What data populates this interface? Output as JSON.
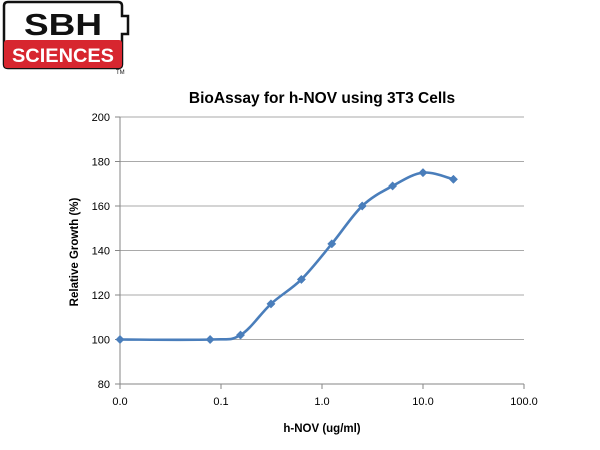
{
  "logo": {
    "line1": "SBH",
    "line2": "SCIENCES",
    "tm": "TM",
    "colors": {
      "red": "#d7262f",
      "black": "#111111",
      "white": "#ffffff"
    }
  },
  "chart_data": {
    "type": "line",
    "title": "BioAssay for h-NOV using 3T3 Cells",
    "xlabel": "h-NOV (ug/ml)",
    "ylabel": "Relative Growth (%)",
    "x_scale": "log",
    "xlim": [
      0.01,
      100
    ],
    "x_ticks": [
      0.01,
      0.1,
      1,
      10,
      100
    ],
    "x_tick_labels": [
      "0.0",
      "0.1",
      "1.0",
      "10.0",
      "100.0"
    ],
    "ylim": [
      80,
      200
    ],
    "y_ticks": [
      80,
      100,
      120,
      140,
      160,
      180,
      200
    ],
    "y_tick_labels": [
      "80",
      "100",
      "120",
      "140",
      "160",
      "180",
      "200"
    ],
    "grid": "horizontal",
    "legend": "none",
    "series": [
      {
        "color": "#4a7ebb",
        "marker": "diamond",
        "smooth": true,
        "x": [
          0.01,
          0.078,
          0.156,
          0.3125,
          0.625,
          1.25,
          2.5,
          5,
          10,
          20
        ],
        "y": [
          100,
          100,
          102,
          116,
          127,
          143,
          160,
          169,
          175,
          172
        ]
      }
    ]
  }
}
